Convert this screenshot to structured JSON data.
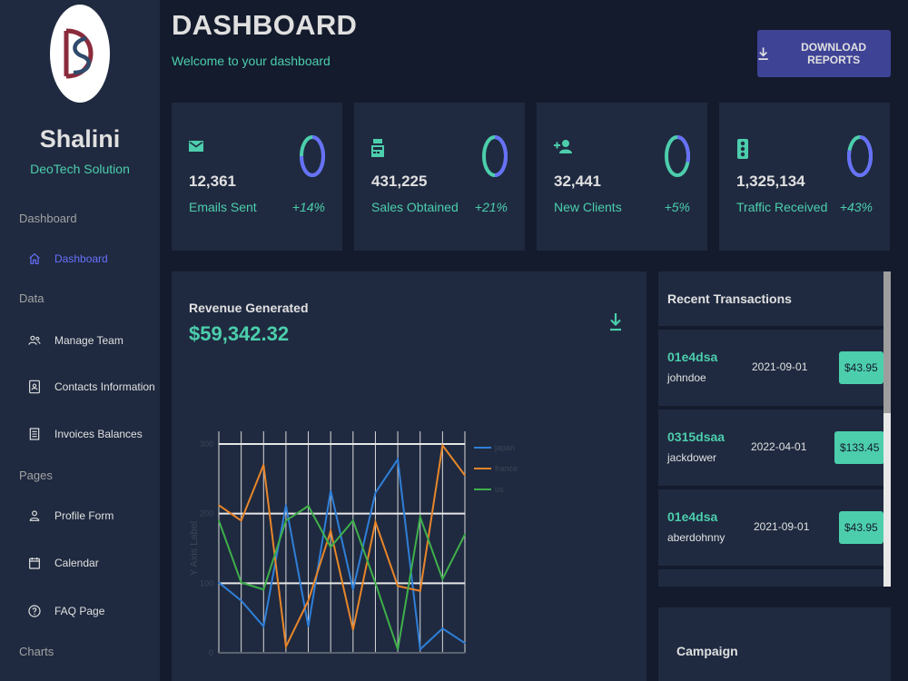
{
  "sidebar": {
    "user_name": "Shalini",
    "user_subtitle": "DeoTech Solution",
    "sections": [
      "Dashboard",
      "Data",
      "Pages",
      "Charts"
    ],
    "items": [
      {
        "label": "Dashboard",
        "icon": "home-icon",
        "active": true
      },
      {
        "label": "Manage Team",
        "icon": "team-icon"
      },
      {
        "label": "Contacts Information",
        "icon": "contacts-icon"
      },
      {
        "label": "Invoices Balances",
        "icon": "receipt-icon"
      },
      {
        "label": "Profile Form",
        "icon": "person-icon"
      },
      {
        "label": "Calendar",
        "icon": "calendar-icon"
      },
      {
        "label": "FAQ Page",
        "icon": "help-icon"
      }
    ]
  },
  "header": {
    "title": "DASHBOARD",
    "subtitle": "Welcome to your dashboard",
    "download_label": "DOWNLOAD REPORTS"
  },
  "stats": [
    {
      "value": "12,361",
      "label": "Emails Sent",
      "increase": "+14%",
      "progress": 0.75,
      "icon": "email-icon"
    },
    {
      "value": "431,225",
      "label": "Sales Obtained",
      "increase": "+21%",
      "progress": 0.5,
      "icon": "point-of-sale-icon"
    },
    {
      "value": "32,441",
      "label": "New Clients",
      "increase": "+5%",
      "progress": 0.3,
      "icon": "person-add-icon"
    },
    {
      "value": "1,325,134",
      "label": "Traffic Received",
      "increase": "+43%",
      "progress": 0.8,
      "icon": "traffic-icon"
    }
  ],
  "revenue": {
    "title": "Revenue Generated",
    "value": "$59,342.32"
  },
  "chart_data": {
    "type": "line",
    "ylabel": "Y Axis Label",
    "ylim": [
      0,
      300
    ],
    "yticks": [
      0,
      100,
      200,
      300
    ],
    "x_count": 12,
    "series": [
      {
        "name": "japan",
        "color": "#2f7fd8",
        "values": [
          101,
          75,
          38,
          212,
          38,
          233,
          91,
          230,
          278,
          5,
          35,
          14
        ]
      },
      {
        "name": "france",
        "color": "#e8862a",
        "values": [
          212,
          190,
          270,
          9,
          75,
          175,
          33,
          188,
          96,
          89,
          298,
          255
        ]
      },
      {
        "name": "us",
        "color": "#3fb04a",
        "values": [
          190,
          101,
          91,
          190,
          211,
          152,
          190,
          100,
          5,
          195,
          106,
          170
        ]
      }
    ],
    "grid": true,
    "legend": "top-right"
  },
  "transactions": {
    "title": "Recent Transactions",
    "rows": [
      {
        "txId": "01e4dsa",
        "user": "johndoe",
        "date": "2021-09-01",
        "cost": "$43.95"
      },
      {
        "txId": "0315dsaa",
        "user": "jackdower",
        "date": "2022-04-01",
        "cost": "$133.45"
      },
      {
        "txId": "01e4dsa",
        "user": "aberdohnny",
        "date": "2021-09-01",
        "cost": "$43.95"
      }
    ]
  },
  "campaign": {
    "title": "Campaign"
  },
  "colors": {
    "background": "#141b2d",
    "panel": "#1f2a40",
    "accent_green": "#4cceac",
    "accent_blue": "#6870fa",
    "button": "#3e4396"
  }
}
